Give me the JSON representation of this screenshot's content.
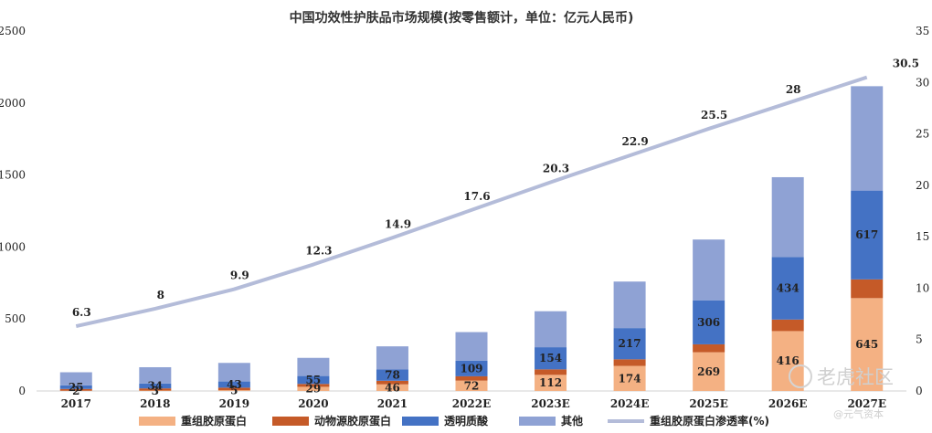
{
  "chart_data": {
    "type": "bar",
    "subtype": "stacked-bar-with-line",
    "title": "中国功效性护肤品市场规模(按零售额计，单位：亿元人民币)",
    "categories": [
      "2017",
      "2018",
      "2019",
      "2020",
      "2021",
      "2022E",
      "2023E",
      "2024E",
      "2025E",
      "2026E",
      "2027E"
    ],
    "ylim_left": [
      0,
      2500
    ],
    "ylim_right": [
      0,
      35
    ],
    "yticks_left": [
      "0",
      "500",
      "1000",
      "1500",
      "2000",
      "2500"
    ],
    "yticks_right": [
      "0",
      "5",
      "10",
      "15",
      "20",
      "25",
      "30",
      "35"
    ],
    "series": [
      {
        "name": "重组胶原蛋白",
        "color": "#f4b183",
        "values": [
          2,
          3,
          5,
          29,
          46,
          72,
          112,
          174,
          269,
          416,
          645
        ],
        "show_labels": true
      },
      {
        "name": "动物源胶原蛋白",
        "color": "#c55a28",
        "values": [
          12,
          15,
          18,
          20,
          25,
          30,
          38,
          46,
          55,
          80,
          130
        ],
        "show_labels": false
      },
      {
        "name": "透明质酸",
        "color": "#4472c4",
        "values": [
          25,
          34,
          43,
          55,
          78,
          109,
          154,
          217,
          306,
          434,
          617
        ],
        "show_labels": true
      },
      {
        "name": "其他",
        "color": "#8fa2d4",
        "values": [
          91,
          113,
          129,
          126,
          161,
          198,
          250,
          323,
          422,
          555,
          725
        ],
        "show_labels": false
      }
    ],
    "line": {
      "name": "重组胶原蛋白渗透率(%)",
      "color": "#b4bcd9",
      "axis": "right",
      "values": [
        6.3,
        8,
        9.9,
        12.3,
        14.9,
        17.6,
        20.3,
        22.9,
        25.5,
        28,
        30.5
      ],
      "labels": [
        "6.3",
        "8",
        "9.9",
        "12.3",
        "14.9",
        "17.6",
        "20.3",
        "22.9",
        "25.5",
        "28",
        "30.5"
      ]
    },
    "legend_position": "bottom"
  },
  "watermark": {
    "primary": "老虎社区",
    "secondary": "@元气资本"
  }
}
